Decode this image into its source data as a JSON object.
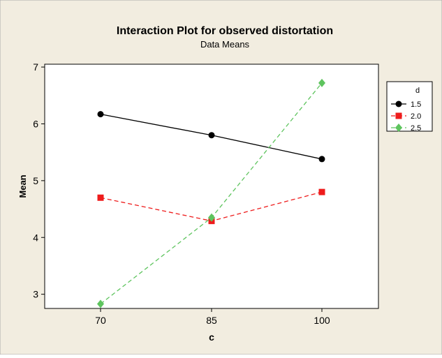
{
  "chart_data": {
    "type": "line",
    "title": "Interaction Plot for observed  distortation",
    "subtitle": "Data Means",
    "xlabel": "c",
    "ylabel": "Mean",
    "categories": [
      "70",
      "85",
      "100"
    ],
    "yticks": [
      3,
      4,
      5,
      6,
      7
    ],
    "ylim": [
      2.75,
      7.05
    ],
    "grid": false,
    "legend": {
      "title": "d",
      "placement": "right"
    },
    "series": [
      {
        "name": "1.5",
        "values": [
          6.17,
          5.8,
          5.38
        ],
        "color": "#000000",
        "marker": "circle",
        "line": "solid"
      },
      {
        "name": "2.0",
        "values": [
          4.7,
          4.29,
          4.8
        ],
        "color": "#ee1c1c",
        "marker": "square",
        "line": "dashed"
      },
      {
        "name": "2.5",
        "values": [
          2.83,
          4.35,
          6.72
        ],
        "color": "#5ec45e",
        "marker": "diamond",
        "line": "dashed"
      }
    ],
    "colors": {
      "frame_background": "#f2ede0",
      "plot_background": "#ffffff"
    }
  }
}
